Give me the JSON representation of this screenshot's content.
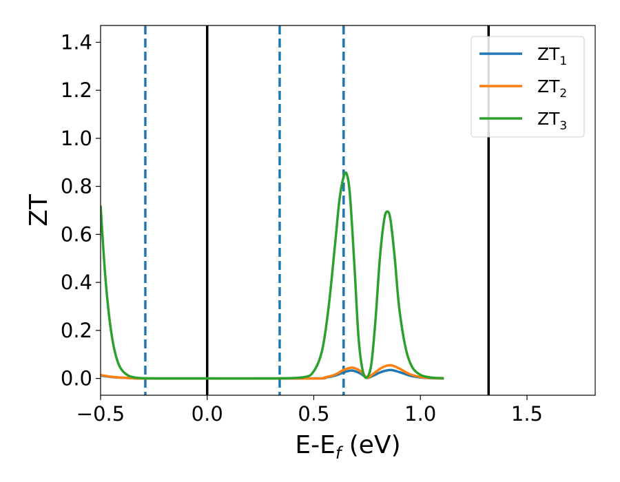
{
  "chart_data": {
    "type": "line",
    "title": "",
    "xlabel_main": "E-E",
    "xlabel_sub": "f",
    "xlabel_unit": " (eV)",
    "ylabel": "ZT",
    "xlim": [
      -0.5,
      1.82
    ],
    "ylim": [
      -0.07,
      1.47
    ],
    "xticks": [
      -0.5,
      0.0,
      0.5,
      1.0,
      1.5
    ],
    "xtick_labels": [
      "−0.5",
      "0.0",
      "0.5",
      "1.0",
      "1.5"
    ],
    "yticks": [
      0.0,
      0.2,
      0.4,
      0.6,
      0.8,
      1.0,
      1.2,
      1.4
    ],
    "ytick_labels": [
      "0.0",
      "0.2",
      "0.4",
      "0.6",
      "0.8",
      "1.0",
      "1.2",
      "1.4"
    ],
    "grid": false,
    "legend_position": "top-right",
    "vlines_solid": [
      0.0,
      1.32
    ],
    "vlines_dashed": [
      -0.29,
      0.34,
      0.64
    ],
    "series": [
      {
        "name": "ZT",
        "name_sub": "1",
        "color": "#1f77b4",
        "x": [
          -0.5,
          -0.45,
          -0.4,
          -0.35,
          -0.3,
          0.0,
          0.5,
          0.55,
          0.6,
          0.64,
          0.68,
          0.72,
          0.75,
          0.78,
          0.82,
          0.86,
          0.9,
          0.95,
          1.0,
          1.05,
          1.11
        ],
        "values": [
          0.012,
          0.006,
          0.003,
          0.001,
          0.0,
          0.0,
          0.0,
          0.003,
          0.012,
          0.025,
          0.033,
          0.02,
          0.002,
          0.012,
          0.028,
          0.035,
          0.027,
          0.012,
          0.004,
          0.001,
          0.0
        ]
      },
      {
        "name": "ZT",
        "name_sub": "2",
        "color": "#ff7f0e",
        "x": [
          -0.5,
          -0.45,
          -0.4,
          -0.35,
          -0.3,
          0.0,
          0.5,
          0.55,
          0.6,
          0.64,
          0.68,
          0.72,
          0.75,
          0.78,
          0.82,
          0.86,
          0.9,
          0.95,
          1.0,
          1.05,
          1.11
        ],
        "values": [
          0.014,
          0.007,
          0.003,
          0.001,
          0.0,
          0.0,
          0.0,
          0.004,
          0.016,
          0.035,
          0.045,
          0.03,
          0.003,
          0.02,
          0.045,
          0.055,
          0.042,
          0.018,
          0.006,
          0.002,
          0.0
        ]
      },
      {
        "name": "ZT",
        "name_sub": "3",
        "color": "#2ca02c",
        "x": [
          -0.5,
          -0.48,
          -0.46,
          -0.44,
          -0.42,
          -0.4,
          -0.37,
          -0.34,
          -0.3,
          -0.2,
          0.0,
          0.3,
          0.45,
          0.5,
          0.54,
          0.57,
          0.6,
          0.62,
          0.64,
          0.655,
          0.67,
          0.69,
          0.71,
          0.73,
          0.75,
          0.77,
          0.79,
          0.81,
          0.83,
          0.845,
          0.86,
          0.88,
          0.9,
          0.93,
          0.96,
          1.0,
          1.05,
          1.11
        ],
        "values": [
          0.72,
          0.45,
          0.26,
          0.14,
          0.07,
          0.035,
          0.012,
          0.004,
          0.001,
          0.0,
          0.0,
          0.0,
          0.005,
          0.03,
          0.12,
          0.3,
          0.56,
          0.74,
          0.84,
          0.85,
          0.76,
          0.48,
          0.17,
          0.03,
          0.005,
          0.06,
          0.25,
          0.5,
          0.66,
          0.695,
          0.66,
          0.5,
          0.3,
          0.13,
          0.05,
          0.015,
          0.004,
          0.001
        ]
      }
    ]
  }
}
